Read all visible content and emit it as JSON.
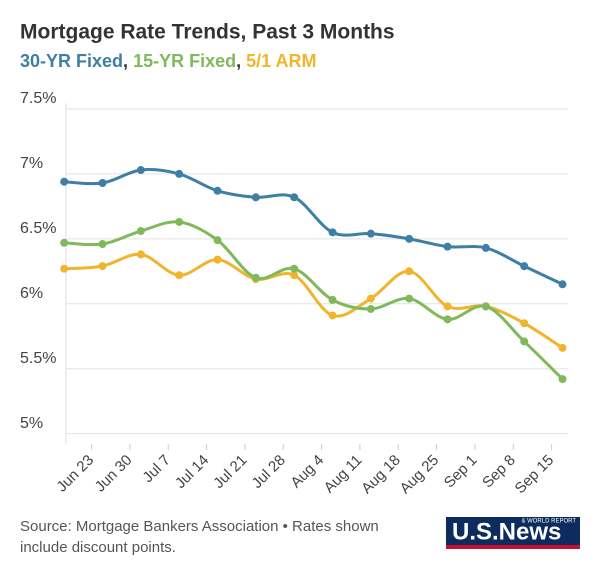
{
  "chart_data": {
    "type": "line",
    "title": "Mortgage Rate Trends, Past 3 Months",
    "legend_separator": ", ",
    "x": [
      18,
      25,
      32,
      39,
      46,
      53,
      60,
      67,
      74,
      81,
      88,
      95,
      102,
      109
    ],
    "xlim": [
      17.6,
      110
    ],
    "xticks": [
      {
        "value": 23,
        "label": "Jun 23"
      },
      {
        "value": 30,
        "label": "Jun 30"
      },
      {
        "value": 37,
        "label": "Jul 7"
      },
      {
        "value": 44,
        "label": "Jul 14"
      },
      {
        "value": 51,
        "label": "Jul 21"
      },
      {
        "value": 58,
        "label": "Jul 28"
      },
      {
        "value": 65,
        "label": "Aug 4"
      },
      {
        "value": 72,
        "label": "Aug 11"
      },
      {
        "value": 79,
        "label": "Aug 18"
      },
      {
        "value": 86,
        "label": "Aug 25"
      },
      {
        "value": 93,
        "label": "Sep 1"
      },
      {
        "value": 100,
        "label": "Sep 8"
      },
      {
        "value": 107,
        "label": "Sep 15"
      }
    ],
    "ylim": [
      4.92,
      7.5
    ],
    "yticks": [
      {
        "value": 5,
        "label": "5%"
      },
      {
        "value": 5.5,
        "label": "5.5%"
      },
      {
        "value": 6,
        "label": "6%"
      },
      {
        "value": 6.5,
        "label": "6.5%"
      },
      {
        "value": 7,
        "label": "7%"
      },
      {
        "value": 7.5,
        "label": "7.5%"
      }
    ],
    "grid": true,
    "series": [
      {
        "name": "30-YR Fixed",
        "color": "#3f7fa6",
        "values": [
          6.94,
          6.93,
          7.03,
          7.0,
          6.87,
          6.82,
          6.82,
          6.55,
          6.54,
          6.5,
          6.44,
          6.43,
          6.29,
          6.15
        ]
      },
      {
        "name": "15-YR Fixed",
        "color": "#80b95b",
        "values": [
          6.47,
          6.46,
          6.56,
          6.63,
          6.49,
          6.2,
          6.27,
          6.03,
          5.96,
          6.04,
          5.88,
          5.98,
          5.71,
          5.42
        ]
      },
      {
        "name": "5/1 ARM",
        "color": "#f0b52f",
        "values": [
          6.27,
          6.29,
          6.38,
          6.22,
          6.34,
          6.19,
          6.22,
          5.91,
          6.04,
          6.25,
          5.98,
          5.98,
          5.85,
          5.66
        ]
      }
    ],
    "source": "Source: Mortgage Bankers Association • Rates shown include discount points.",
    "logo": {
      "main": "U.S.News",
      "sub": "& WORLD REPORT"
    }
  }
}
